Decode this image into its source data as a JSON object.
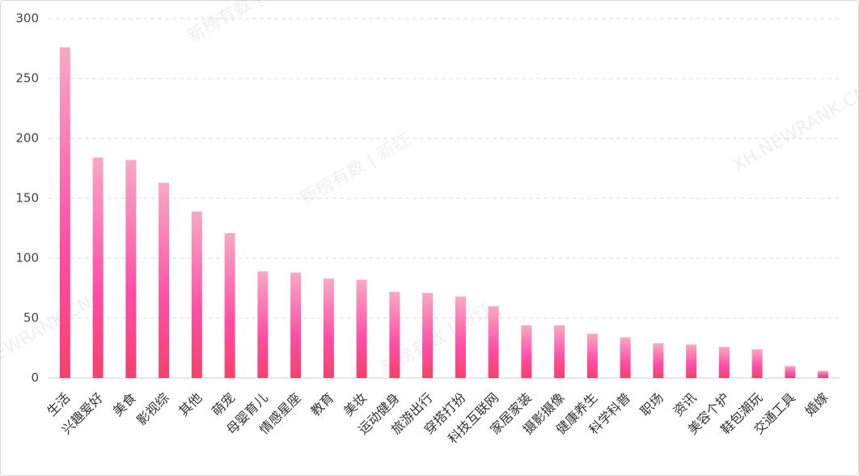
{
  "chart_data": {
    "type": "bar",
    "categories": [
      "生活",
      "兴趣爱好",
      "美食",
      "影视综",
      "其他",
      "萌宠",
      "母婴育儿",
      "情感星座",
      "教育",
      "美妆",
      "运动健身",
      "旅游出行",
      "穿搭打扮",
      "科技互联网",
      "家居家装",
      "摄影摄像",
      "健康养生",
      "科学科普",
      "职场",
      "资讯",
      "美容个护",
      "鞋包潮玩",
      "交通工具",
      "婚嫁"
    ],
    "values": [
      276,
      184,
      182,
      163,
      139,
      121,
      89,
      88,
      83,
      82,
      72,
      71,
      68,
      60,
      44,
      44,
      37,
      34,
      29,
      28,
      26,
      24,
      10,
      6
    ],
    "colors": [
      "#f9a8c4",
      "#fe4fa6",
      "#f5416c"
    ],
    "ylim": [
      0,
      300
    ],
    "yticks": [
      0,
      50,
      100,
      150,
      200,
      250,
      300
    ],
    "grid": true,
    "watermarks": [
      "新榜有数 | 新红",
      "XH.NEWRANK.CN"
    ]
  }
}
